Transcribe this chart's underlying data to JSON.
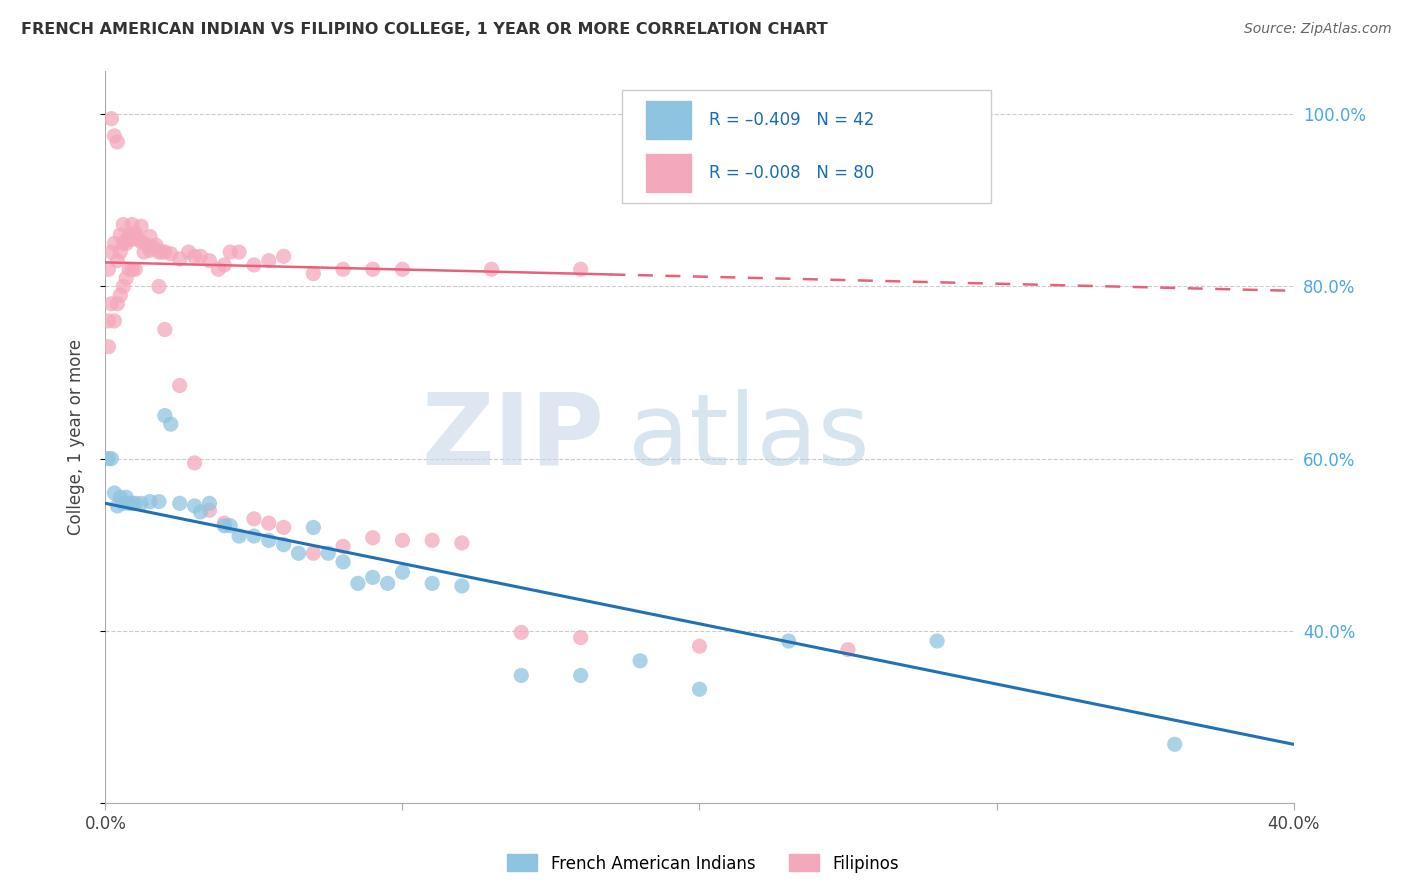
{
  "title": "FRENCH AMERICAN INDIAN VS FILIPINO COLLEGE, 1 YEAR OR MORE CORRELATION CHART",
  "source": "Source: ZipAtlas.com",
  "ylabel": "College, 1 year or more",
  "xlim": [
    0.0,
    0.4
  ],
  "ylim": [
    0.2,
    1.05
  ],
  "yticks": [
    0.2,
    0.4,
    0.6,
    0.8,
    1.0
  ],
  "ytick_labels_right": [
    "",
    "40.0%",
    "60.0%",
    "80.0%",
    "100.0%"
  ],
  "watermark_zip": "ZIP",
  "watermark_atlas": "atlas",
  "blue_color": "#8fc4e0",
  "pink_color": "#f4a8bb",
  "trendline_blue_color": "#2171b5",
  "trendline_pink_color": "#e8617a",
  "legend_text_color": "#1a6cb5",
  "title_color": "#333333",
  "source_color": "#666666",
  "grid_color": "#cccccc",
  "right_axis_color": "#4da6e8",
  "blue_scatter_x": [
    0.001,
    0.002,
    0.003,
    0.004,
    0.005,
    0.006,
    0.007,
    0.008,
    0.009,
    0.01,
    0.012,
    0.015,
    0.018,
    0.02,
    0.022,
    0.025,
    0.03,
    0.032,
    0.035,
    0.04,
    0.042,
    0.045,
    0.05,
    0.055,
    0.06,
    0.065,
    0.07,
    0.075,
    0.08,
    0.085,
    0.09,
    0.095,
    0.1,
    0.11,
    0.12,
    0.14,
    0.16,
    0.18,
    0.2,
    0.23,
    0.28,
    0.36
  ],
  "blue_scatter_y": [
    0.6,
    0.6,
    0.56,
    0.545,
    0.555,
    0.548,
    0.555,
    0.548,
    0.548,
    0.548,
    0.548,
    0.55,
    0.55,
    0.65,
    0.64,
    0.548,
    0.545,
    0.538,
    0.548,
    0.522,
    0.522,
    0.51,
    0.51,
    0.505,
    0.5,
    0.49,
    0.52,
    0.49,
    0.48,
    0.455,
    0.462,
    0.455,
    0.468,
    0.455,
    0.452,
    0.348,
    0.348,
    0.365,
    0.332,
    0.388,
    0.388,
    0.268
  ],
  "pink_scatter_x": [
    0.001,
    0.001,
    0.001,
    0.002,
    0.002,
    0.003,
    0.003,
    0.004,
    0.004,
    0.005,
    0.005,
    0.006,
    0.006,
    0.007,
    0.007,
    0.008,
    0.008,
    0.009,
    0.009,
    0.01,
    0.01,
    0.011,
    0.012,
    0.013,
    0.014,
    0.015,
    0.016,
    0.017,
    0.018,
    0.019,
    0.02,
    0.022,
    0.025,
    0.028,
    0.03,
    0.032,
    0.035,
    0.038,
    0.04,
    0.042,
    0.045,
    0.05,
    0.055,
    0.06,
    0.07,
    0.08,
    0.09,
    0.1,
    0.13,
    0.16,
    0.002,
    0.003,
    0.004,
    0.005,
    0.006,
    0.007,
    0.008,
    0.009,
    0.01,
    0.012,
    0.015,
    0.018,
    0.02,
    0.025,
    0.03,
    0.035,
    0.04,
    0.05,
    0.055,
    0.06,
    0.07,
    0.08,
    0.09,
    0.1,
    0.11,
    0.12,
    0.14,
    0.16,
    0.2,
    0.25
  ],
  "pink_scatter_y": [
    0.82,
    0.76,
    0.73,
    0.84,
    0.78,
    0.85,
    0.76,
    0.83,
    0.78,
    0.84,
    0.79,
    0.85,
    0.8,
    0.85,
    0.81,
    0.855,
    0.82,
    0.855,
    0.82,
    0.858,
    0.82,
    0.855,
    0.852,
    0.84,
    0.848,
    0.842,
    0.845,
    0.848,
    0.84,
    0.84,
    0.84,
    0.838,
    0.832,
    0.84,
    0.835,
    0.835,
    0.83,
    0.82,
    0.825,
    0.84,
    0.84,
    0.825,
    0.83,
    0.835,
    0.815,
    0.82,
    0.82,
    0.82,
    0.82,
    0.82,
    0.995,
    0.975,
    0.968,
    0.86,
    0.872,
    0.855,
    0.86,
    0.872,
    0.862,
    0.87,
    0.858,
    0.8,
    0.75,
    0.685,
    0.595,
    0.54,
    0.525,
    0.53,
    0.525,
    0.52,
    0.49,
    0.498,
    0.508,
    0.505,
    0.505,
    0.502,
    0.398,
    0.392,
    0.382,
    0.378
  ],
  "blue_trend_x0": 0.0,
  "blue_trend_x1": 0.4,
  "blue_trend_y0": 0.548,
  "blue_trend_y1": 0.268,
  "pink_trend_x0": 0.0,
  "pink_trend_x1": 0.4,
  "pink_trend_solid_x1": 0.17,
  "pink_trend_y0": 0.828,
  "pink_trend_y1": 0.795,
  "legend_entries": [
    {
      "label": "R = –0.409   N = 42",
      "color": "#8fc4e0"
    },
    {
      "label": "R = –0.008   N = 80",
      "color": "#f4a8bb"
    }
  ],
  "bottom_legend": [
    {
      "label": "French American Indians",
      "color": "#8fc4e0"
    },
    {
      "label": "Filipinos",
      "color": "#f4a8bb"
    }
  ]
}
